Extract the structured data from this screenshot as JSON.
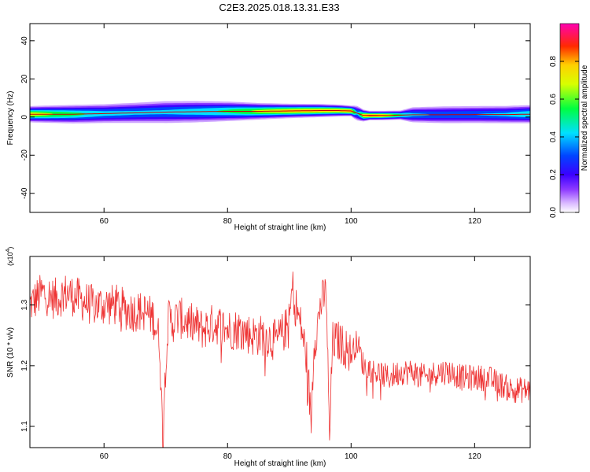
{
  "page_title": "C2E3.2025.018.13.31.E33",
  "chart_data": [
    {
      "type": "heatmap",
      "xlabel": "Height of straight line (km)",
      "ylabel": "Frequency (Hz)",
      "xlim": [
        48,
        129
      ],
      "ylim": [
        -50,
        49
      ],
      "x_ticks": [
        60,
        80,
        100,
        120
      ],
      "x_tick_labels": [
        "60",
        "80",
        "100",
        "120"
      ],
      "y_ticks": [
        -40,
        -20,
        0,
        20,
        40
      ],
      "y_tick_labels": [
        "-40",
        "-20",
        "0",
        "20",
        "40"
      ],
      "colorbar": {
        "label": "Normalized spectral amplitude",
        "range": [
          0,
          1
        ],
        "ticks": [
          0.0,
          0.2,
          0.4,
          0.6,
          0.8
        ],
        "tick_labels": [
          "0.0",
          "0.2",
          "0.4",
          "0.6",
          "0.8"
        ],
        "colormap": "rainbow: violet-blue-cyan-green-yellow-red-magenta"
      },
      "ridge": {
        "x": [
          48,
          55,
          60,
          65,
          70,
          75,
          80,
          85,
          90,
          95,
          98,
          100,
          101,
          102,
          103,
          105,
          108,
          110,
          115,
          120,
          125,
          129
        ],
        "center_freq_hz": [
          1.5,
          1.5,
          1.8,
          2.2,
          2.6,
          2.8,
          3.0,
          3.0,
          3.2,
          3.4,
          3.4,
          3.2,
          2.0,
          0.8,
          0.8,
          0.8,
          1.0,
          1.2,
          1.2,
          1.3,
          1.3,
          1.5
        ],
        "half_width_hz": [
          2.5,
          3.0,
          3.2,
          3.5,
          3.8,
          3.6,
          3.2,
          2.6,
          2.2,
          2.0,
          1.8,
          1.6,
          2.5,
          1.8,
          1.4,
          1.4,
          1.5,
          2.6,
          3.0,
          3.0,
          3.0,
          3.0
        ],
        "peak_amplitude": [
          0.78,
          0.6,
          0.48,
          0.45,
          0.45,
          0.5,
          0.58,
          0.72,
          0.82,
          0.85,
          0.85,
          0.9,
          0.45,
          0.85,
          0.92,
          0.88,
          0.6,
          0.45,
          0.4,
          0.42,
          0.45,
          0.55
        ]
      }
    },
    {
      "type": "line",
      "xlabel": "Height of straight line (km)",
      "ylabel": "SNR (10 * v/v)",
      "y_multiplier_label": "(x10",
      "y_multiplier_exp": "4",
      "xlim": [
        48,
        129
      ],
      "ylim": [
        1.065,
        1.38
      ],
      "x_ticks": [
        60,
        80,
        100,
        120
      ],
      "x_tick_labels": [
        "60",
        "80",
        "100",
        "120"
      ],
      "y_ticks": [
        1.1,
        1.2,
        1.3
      ],
      "y_tick_labels": [
        "1.1",
        "1.2",
        "1.3"
      ],
      "series": [
        {
          "color": "#ee3333",
          "x": [
            48,
            50,
            52,
            54,
            56,
            58,
            60,
            62,
            64,
            66,
            68,
            69,
            69.5,
            70,
            70.5,
            71,
            72,
            74,
            76,
            78,
            80,
            82,
            84,
            86,
            88,
            90,
            90.5,
            91,
            92,
            93,
            93.5,
            94,
            94.5,
            95,
            96,
            96.5,
            97,
            98,
            100,
            101,
            102,
            104,
            106,
            108,
            110,
            112,
            114,
            116,
            118,
            120,
            122,
            124,
            126,
            128,
            129
          ],
          "y": [
            1.3,
            1.32,
            1.31,
            1.32,
            1.31,
            1.3,
            1.3,
            1.3,
            1.29,
            1.29,
            1.28,
            1.24,
            1.08,
            1.22,
            1.28,
            1.27,
            1.28,
            1.27,
            1.26,
            1.27,
            1.26,
            1.26,
            1.25,
            1.25,
            1.24,
            1.27,
            1.33,
            1.3,
            1.26,
            1.2,
            1.1,
            1.24,
            1.26,
            1.3,
            1.32,
            1.07,
            1.24,
            1.24,
            1.22,
            1.24,
            1.2,
            1.19,
            1.18,
            1.19,
            1.19,
            1.18,
            1.19,
            1.19,
            1.18,
            1.18,
            1.18,
            1.17,
            1.16,
            1.16,
            1.16
          ]
        }
      ]
    }
  ]
}
